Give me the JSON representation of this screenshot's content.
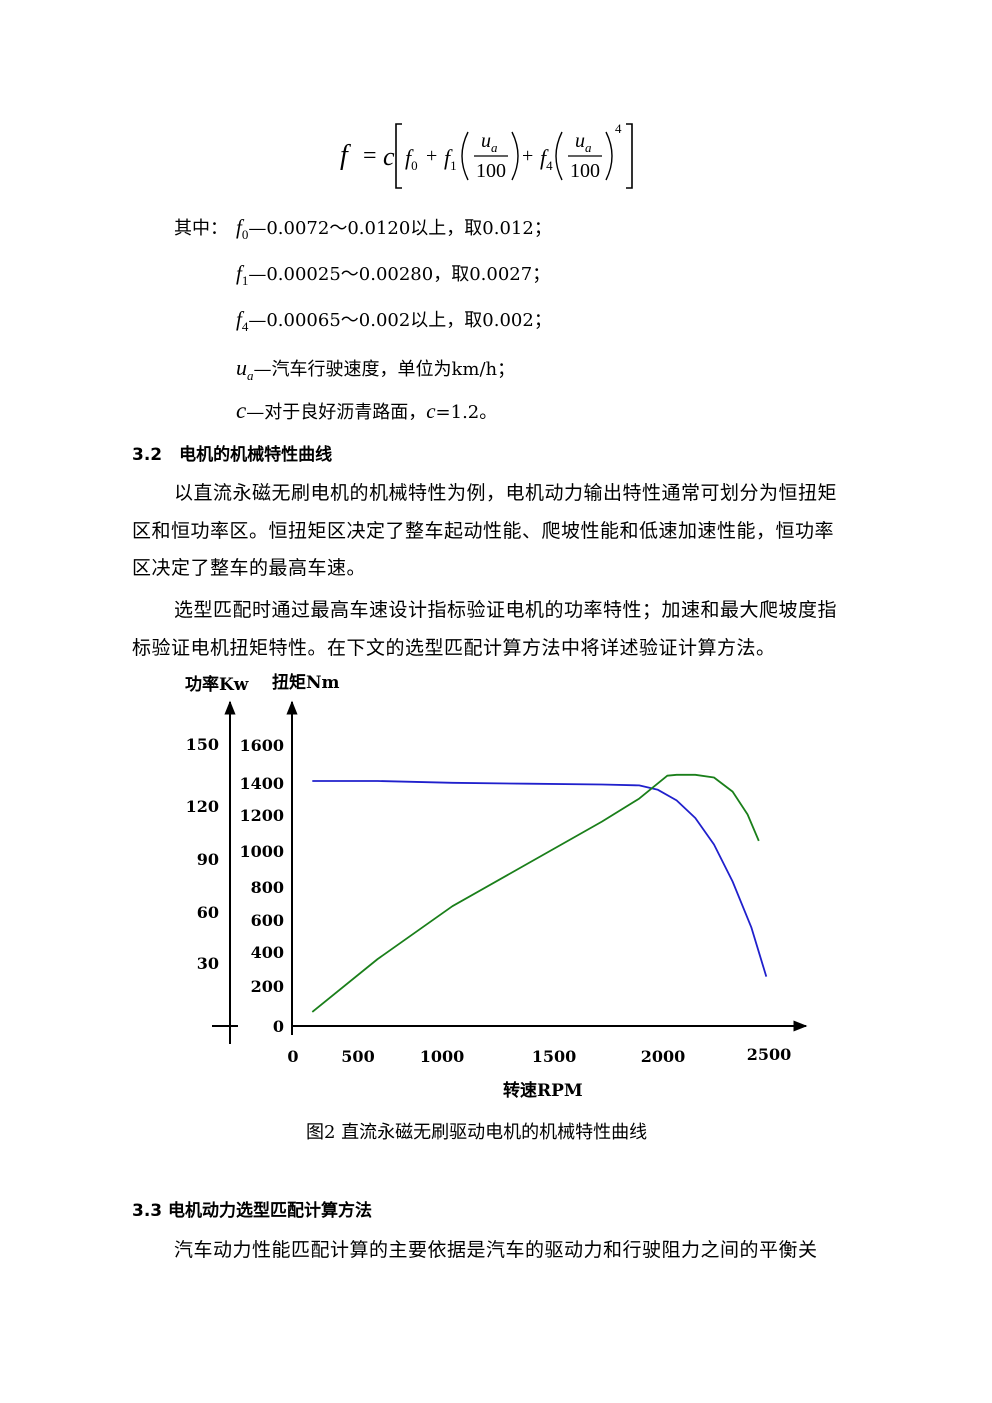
{
  "formula": {
    "lhs": "f",
    "eq": "=",
    "c": "c",
    "f0_base": "f",
    "f0_sub": "0",
    "plus": "+",
    "f1_base": "f",
    "f1_sub": "1",
    "f4_base": "f",
    "f4_sub": "4",
    "num_base": "u",
    "num_sub": "a",
    "den": "100",
    "power": "4"
  },
  "definitions": {
    "lead": "其中：",
    "f0": {
      "sym": "f",
      "sub": "0",
      "text": "—0.0072～0.0120以上，取0.012；"
    },
    "f1": {
      "sym": "f",
      "sub": "1",
      "text": "—0.00025～0.00280，取0.0027；"
    },
    "f4": {
      "sym": "f",
      "sub": "4",
      "text": "—0.00065～0.002以上，取0.002；"
    },
    "ua": {
      "sym": "u",
      "sub": "a",
      "text": "—汽车行驶速度，单位为km/h；"
    },
    "c": {
      "sym": "c",
      "text": "—对于良好沥青路面，",
      "sym2": "c",
      "text2": "=1.2。"
    }
  },
  "section_3_2": {
    "heading": "3.2　电机的机械特性曲线",
    "p1_lines": [
      "以直流永磁无刷电机的机械特性为例，电机动力输出特性通常可划分为恒扭矩",
      "区和恒功率区。恒扭矩区决定了整车起动性能、爬坡性能和低速加速性能，恒功率",
      "区决定了整车的最高车速。"
    ],
    "p2_lines": [
      "选型匹配时通过最高车速设计指标验证电机的功率特性；加速和最大爬坡度指",
      "标验证电机扭矩特性。在下文的选型匹配计算方法中将详述验证计算方法。"
    ]
  },
  "chart_data": {
    "type": "line",
    "title": "",
    "xlabel": "转速RPM",
    "ylabel_power": "功率Kw",
    "ylabel_torque": "扭矩Nm",
    "x_ticks": [
      "0",
      "500",
      "1000",
      "1500",
      "2000",
      "2500"
    ],
    "power_ticks": [
      "150",
      "120",
      "90",
      "60",
      "30"
    ],
    "torque_ticks": [
      "1600",
      "1400",
      "1200",
      "1000",
      "800",
      "600",
      "400",
      "200",
      "0"
    ],
    "xlim": [
      0,
      2500
    ],
    "torque_ylim": [
      0,
      1600
    ],
    "grid": false,
    "series": [
      {
        "color": "#2020cc",
        "axis": "torque",
        "x": [
          50,
          400,
          800,
          1200,
          1600,
          1800,
          1900,
          2000,
          2100,
          2200,
          2300,
          2400,
          2480
        ],
        "y": [
          1390,
          1390,
          1380,
          1375,
          1370,
          1365,
          1340,
          1280,
          1180,
          1030,
          820,
          560,
          280
        ]
      },
      {
        "color": "#1a7f1a",
        "axis": "torque",
        "x": [
          50,
          400,
          800,
          1200,
          1600,
          1800,
          1950,
          2000,
          2100,
          2200,
          2300,
          2380,
          2440
        ],
        "y": [
          80,
          380,
          680,
          920,
          1160,
          1290,
          1420,
          1425,
          1425,
          1410,
          1330,
          1200,
          1050
        ]
      }
    ],
    "caption": "图2 直流永磁无刷驱动电机的机械特性曲线"
  },
  "section_3_3": {
    "heading": "3.3 电机动力选型匹配计算方法",
    "p1_lines": [
      "汽车动力性能匹配计算的主要依据是汽车的驱动力和行驶阻力之间的平衡关"
    ]
  }
}
